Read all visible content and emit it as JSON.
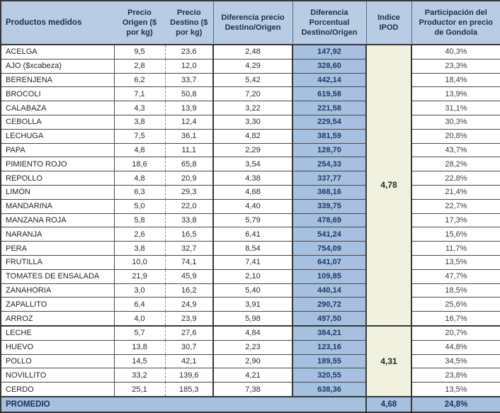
{
  "colors": {
    "header_bg": "#b8cce4",
    "percent_col_bg": "#a6c0e0",
    "ipod_cell_bg": "#f0f1de",
    "footer_bg": "#a6c0e0",
    "border_dark": "#383838",
    "navy_text": "#1f3864"
  },
  "chart_data": {
    "type": "table",
    "title": "",
    "columns": [
      "Productos medidos",
      "Precio Origen ($ por kg)",
      "Precio Destino ($ por kg)",
      "Diferencia precio Destino/Origen",
      "Diferencia Porcentual Destino/Origen",
      "Indice IPOD",
      "Participación del Productor en precio de Gondola"
    ],
    "rows": [
      [
        "ACELGA",
        "9,5",
        "23,6",
        "2,48",
        "147,92",
        "40,3%"
      ],
      [
        "AJO  ($xcabeza)",
        "2,8",
        "12,0",
        "4,29",
        "328,60",
        "23,3%"
      ],
      [
        "BERENJENA",
        "6,2",
        "33,7",
        "5,42",
        "442,14",
        "18,4%"
      ],
      [
        "BROCOLI",
        "7,1",
        "50,8",
        "7,20",
        "619,58",
        "13,9%"
      ],
      [
        "CALABAZA",
        "4,3",
        "13,9",
        "3,22",
        "221,58",
        "31,1%"
      ],
      [
        "CEBOLLA",
        "3,8",
        "12,4",
        "3,30",
        "229,54",
        "30,3%"
      ],
      [
        "LECHUGA",
        "7,5",
        "36,1",
        "4,82",
        "381,59",
        "20,8%"
      ],
      [
        "PAPA",
        "4,8",
        "11,1",
        "2,29",
        "128,70",
        "43,7%"
      ],
      [
        "PIMIENTO ROJO",
        "18,6",
        "65,8",
        "3,54",
        "254,33",
        "28,2%"
      ],
      [
        "REPOLLO",
        "4,8",
        "20,9",
        "4,38",
        "337,77",
        "22,8%"
      ],
      [
        "LIMÓN",
        "6,3",
        "29,3",
        "4,68",
        "368,16",
        "21,4%"
      ],
      [
        "MANDARINA",
        "5,0",
        "22,0",
        "4,40",
        "339,75",
        "22,7%"
      ],
      [
        "MANZANA ROJA",
        "5,8",
        "33,8",
        "5,79",
        "478,69",
        "17,3%"
      ],
      [
        "NARANJA",
        "2,6",
        "16,5",
        "6,41",
        "541,24",
        "15,6%"
      ],
      [
        "PERA",
        "3,8",
        "32,7",
        "8,54",
        "754,09",
        "11,7%"
      ],
      [
        "FRUTILLA",
        "10,0",
        "74,1",
        "7,41",
        "641,07",
        "13,5%"
      ],
      [
        "TOMATES DE ENSALADA",
        "21,9",
        "45,9",
        "2,10",
        "109,85",
        "47,7%"
      ],
      [
        "ZANAHORIA",
        "3,0",
        "16,2",
        "5,40",
        "440,14",
        "18,5%"
      ],
      [
        "ZAPALLITO",
        "6,4",
        "24,9",
        "3,91",
        "290,72",
        "25,6%"
      ],
      [
        "ARROZ",
        "4,0",
        "23,9",
        "5,98",
        "497,50",
        "16,7%"
      ],
      [
        "LECHE",
        "5,7",
        "27,6",
        "4,84",
        "384,21",
        "20,7%"
      ],
      [
        "HUEVO",
        "13,8",
        "30,7",
        "2,23",
        "123,16",
        "44,8%"
      ],
      [
        "POLLO",
        "14,5",
        "42,1",
        "2,90",
        "189,55",
        "34,5%"
      ],
      [
        "NOVILLITO",
        "33,2",
        "139,6",
        "4,21",
        "320,55",
        "23,8%"
      ],
      [
        "CERDO",
        "25,1",
        "185,3",
        "7,38",
        "638,36",
        "13,5%"
      ]
    ],
    "ipod_groups": [
      {
        "value": "4,78",
        "start": 0,
        "span": 20
      },
      {
        "value": "4,31",
        "start": 20,
        "span": 5
      }
    ],
    "footer_row": {
      "label": "PROMEDIO",
      "ipod": "4,68",
      "participacion": "24,8%"
    }
  }
}
